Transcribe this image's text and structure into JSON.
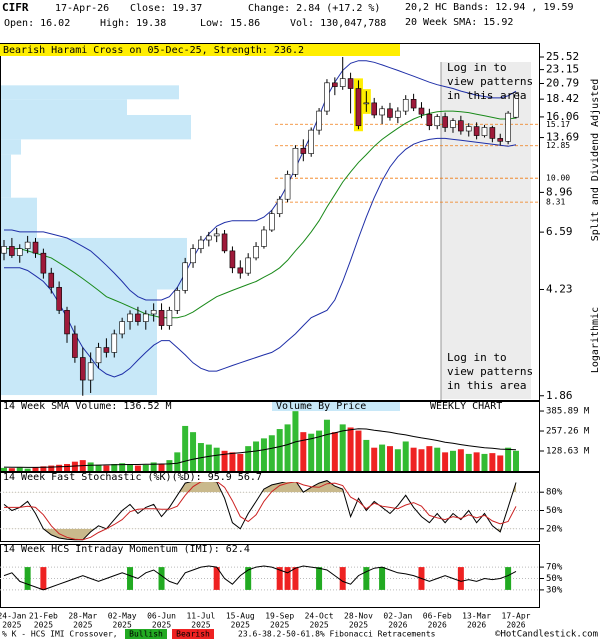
{
  "header": {
    "symbol": "CIFR",
    "date": "17-Apr-26",
    "close": "Close: 19.37",
    "change": "Change: 2.84 (+17.2 %)",
    "open": "Open: 16.02",
    "high": "High: 19.38",
    "low": "Low: 15.86",
    "volume": "Vol: 130,047,788"
  },
  "footer": {
    "crossover": "% K - HCS IMI Crossover,",
    "copyright": "©HotCandlestick.com"
  },
  "chart_data": [
    {
      "type": "candlestick",
      "title": "Bearish Harami Cross on 05-Dec-25, Strength: 236.2",
      "title_color": "#ffee00",
      "categories": [
        null,
        "24-Jan",
        null,
        null,
        null,
        "21-Feb",
        null,
        null,
        null,
        null,
        "28-Mar",
        null,
        null,
        null,
        null,
        "02-May",
        null,
        null,
        null,
        null,
        "06-Jun",
        null,
        null,
        null,
        null,
        "11-Jul",
        null,
        null,
        null,
        null,
        "15-Aug",
        null,
        null,
        null,
        null,
        "19-Sep",
        null,
        null,
        null,
        null,
        "24-Oct",
        null,
        null,
        null,
        null,
        "28-Nov",
        null,
        null,
        null,
        null,
        "02-Jan",
        null,
        null,
        null,
        null,
        "06-Feb",
        null,
        null,
        null,
        null,
        "13-Mar",
        null,
        null,
        null,
        null,
        "17-Apr"
      ],
      "category_years": [
        null,
        "2025",
        null,
        null,
        null,
        "2025",
        null,
        null,
        null,
        null,
        "2025",
        null,
        null,
        null,
        null,
        "2025",
        null,
        null,
        null,
        null,
        "2025",
        null,
        null,
        null,
        null,
        "2025",
        null,
        null,
        null,
        null,
        "2025",
        null,
        null,
        null,
        null,
        "2025",
        null,
        null,
        null,
        null,
        "2025",
        null,
        null,
        null,
        null,
        "2025",
        null,
        null,
        null,
        null,
        "2026",
        null,
        null,
        null,
        null,
        "2026",
        null,
        null,
        null,
        null,
        "2026",
        null,
        null,
        null,
        null,
        "2026"
      ],
      "open": [
        5.6,
        5.9,
        5.5,
        5.8,
        6.1,
        5.6,
        4.8,
        4.3,
        3.6,
        3.0,
        2.5,
        2.1,
        2.4,
        2.7,
        2.6,
        3.0,
        3.3,
        3.5,
        3.3,
        3.5,
        3.6,
        3.2,
        3.6,
        4.2,
        5.2,
        5.8,
        6.2,
        6.4,
        6.5,
        5.7,
        5.0,
        4.8,
        5.4,
        5.9,
        6.7,
        7.6,
        8.5,
        10.3,
        12.6,
        12.1,
        14.5,
        16.8,
        20.9,
        20.3,
        21.6,
        20.0,
        17.8,
        17.9,
        16.3,
        17.1,
        16.0,
        16.8,
        18.4,
        17.2,
        16.4,
        15.0,
        16.1,
        14.8,
        15.6,
        14.4,
        14.9,
        13.9,
        14.8,
        13.6,
        13.3,
        16.02
      ],
      "high": [
        6.2,
        6.3,
        6.0,
        6.4,
        6.3,
        5.8,
        5.0,
        4.5,
        3.7,
        3.2,
        2.7,
        2.6,
        2.8,
        2.9,
        3.1,
        3.4,
        3.6,
        3.7,
        3.6,
        3.8,
        3.8,
        3.7,
        4.3,
        5.4,
        6.0,
        6.4,
        6.6,
        6.8,
        6.7,
        5.9,
        5.3,
        5.6,
        6.1,
        6.9,
        7.8,
        8.7,
        10.6,
        12.9,
        13.5,
        14.8,
        17.2,
        21.5,
        21.8,
        25.52,
        22.6,
        21.3,
        19.6,
        18.6,
        17.5,
        17.9,
        17.3,
        19.0,
        19.2,
        18.0,
        17.1,
        16.4,
        16.6,
        15.9,
        16.2,
        15.3,
        15.4,
        15.1,
        15.0,
        14.1,
        16.8,
        19.38
      ],
      "low": [
        5.3,
        5.4,
        5.2,
        5.6,
        5.4,
        4.6,
        4.1,
        3.5,
        2.8,
        2.4,
        1.86,
        1.9,
        2.3,
        2.5,
        2.5,
        2.9,
        3.1,
        3.2,
        3.1,
        3.3,
        3.1,
        3.1,
        3.5,
        4.1,
        5.0,
        5.6,
        5.9,
        6.1,
        5.6,
        4.8,
        4.6,
        4.7,
        5.3,
        5.8,
        6.6,
        7.4,
        8.3,
        10.1,
        11.4,
        11.8,
        14.0,
        16.3,
        19.0,
        19.8,
        16.5,
        14.6,
        16.7,
        15.9,
        15.2,
        15.6,
        15.3,
        16.3,
        16.8,
        15.9,
        14.5,
        14.6,
        14.3,
        14.2,
        14.0,
        13.8,
        13.5,
        13.7,
        13.2,
        12.9,
        13.0,
        15.86
      ],
      "close": [
        5.9,
        5.5,
        5.8,
        6.1,
        5.6,
        4.8,
        4.3,
        3.6,
        3.0,
        2.5,
        2.1,
        2.4,
        2.7,
        2.6,
        3.0,
        3.3,
        3.5,
        3.3,
        3.5,
        3.6,
        3.2,
        3.6,
        4.2,
        5.2,
        5.8,
        6.2,
        6.4,
        6.5,
        5.7,
        5.0,
        4.8,
        5.4,
        5.9,
        6.7,
        7.6,
        8.5,
        10.3,
        12.6,
        12.1,
        14.5,
        16.8,
        20.9,
        20.3,
        21.6,
        20.0,
        15.0,
        17.9,
        16.3,
        17.1,
        16.0,
        16.8,
        18.4,
        17.2,
        16.4,
        15.0,
        16.1,
        14.8,
        15.6,
        14.4,
        14.9,
        13.9,
        14.8,
        13.6,
        13.3,
        16.53,
        19.37
      ],
      "up_color": "#ffffff",
      "down_color": "#9e1a3a",
      "harami_candles": [
        45,
        46
      ],
      "harami_color": "#ffee00",
      "series": [
        {
          "name": "20,2 HC Bands: 12.94 , 19.59",
          "color": "#1f2fa8",
          "upper": [
            6.7,
            6.7,
            6.6,
            6.6,
            6.6,
            6.6,
            6.5,
            6.4,
            6.3,
            6.1,
            5.9,
            5.7,
            5.4,
            5.1,
            4.8,
            4.5,
            4.2,
            4.0,
            3.9,
            3.9,
            3.9,
            4.0,
            4.3,
            4.8,
            5.4,
            6.0,
            6.5,
            6.9,
            7.1,
            7.2,
            7.2,
            7.2,
            7.2,
            7.4,
            7.8,
            8.5,
            9.5,
            10.8,
            12.3,
            14.0,
            16.2,
            18.8,
            21.0,
            23.0,
            24.3,
            24.8,
            24.8,
            24.5,
            24.0,
            23.5,
            23.0,
            22.5,
            22.0,
            21.5,
            21.0,
            20.6,
            20.3,
            20.0,
            19.6,
            19.3,
            19.0,
            18.8,
            18.6,
            18.6,
            18.9,
            19.59
          ],
          "lower": [
            5.0,
            5.0,
            5.0,
            4.9,
            4.7,
            4.5,
            4.2,
            3.8,
            3.4,
            3.0,
            2.7,
            2.5,
            2.3,
            2.2,
            2.15,
            2.2,
            2.3,
            2.45,
            2.6,
            2.75,
            2.85,
            2.85,
            2.7,
            2.55,
            2.4,
            2.3,
            2.25,
            2.25,
            2.3,
            2.35,
            2.4,
            2.45,
            2.5,
            2.55,
            2.6,
            2.7,
            2.85,
            3.0,
            3.2,
            3.4,
            3.5,
            3.6,
            3.9,
            4.5,
            5.3,
            6.3,
            7.4,
            8.6,
            9.8,
            10.9,
            11.8,
            12.5,
            13.0,
            13.3,
            13.5,
            13.6,
            13.6,
            13.5,
            13.4,
            13.3,
            13.2,
            13.1,
            13.0,
            12.9,
            12.8,
            12.94
          ]
        },
        {
          "name": "20 Week SMA: 15.92",
          "color": "#1a8a1a",
          "values": [
            5.8,
            5.8,
            5.8,
            5.7,
            5.6,
            5.5,
            5.4,
            5.2,
            5.0,
            4.8,
            4.6,
            4.4,
            4.2,
            4.0,
            3.9,
            3.8,
            3.7,
            3.6,
            3.5,
            3.45,
            3.4,
            3.4,
            3.4,
            3.45,
            3.55,
            3.7,
            3.85,
            4.0,
            4.1,
            4.2,
            4.3,
            4.4,
            4.5,
            4.65,
            4.8,
            5.0,
            5.3,
            5.7,
            6.1,
            6.6,
            7.2,
            8.0,
            8.8,
            9.7,
            10.5,
            11.3,
            12.0,
            12.8,
            13.5,
            14.1,
            14.7,
            15.3,
            15.8,
            16.2,
            16.5,
            16.7,
            16.8,
            16.8,
            16.7,
            16.6,
            16.4,
            16.2,
            16.0,
            15.8,
            15.8,
            15.92
          ]
        }
      ],
      "log_scale": true,
      "ylim": [
        1.8,
        28
      ],
      "yticks": [
        25.52,
        23.15,
        20.79,
        18.42,
        16.06,
        13.69,
        8.96,
        6.59,
        4.23,
        1.86
      ],
      "fibonacci": {
        "label": "23.6-38.2-50-61.8% Fibonacci Retracements",
        "color": "#f07a10",
        "levels": [
          15.17,
          12.85,
          {
            "value": 10,
            "label": "10.00"
          },
          8.31
        ]
      },
      "volume_by_price": {
        "name": "Volume By Price",
        "color": "#c8e8f8",
        "bins": [
          1.87,
          4.23,
          6.3,
          8.6,
          12,
          13.5,
          16.3,
          18.4,
          20.5
        ],
        "values": [
          78,
          93,
          18,
          5,
          10,
          95,
          63,
          89
        ],
        "xlim": [
          0,
          100
        ]
      },
      "login_notice": [
        "Log in to",
        "view patterns",
        "in this area"
      ],
      "side_labels": [
        "Split and Dividend Adjusted",
        "Logarithmic"
      ]
    },
    {
      "type": "bar",
      "title": "14 Week SMA Volume: 136.52 M",
      "label": "WEEKLY CHART",
      "values": [
        20,
        18,
        22,
        15,
        25,
        30,
        35,
        40,
        45,
        60,
        70,
        55,
        40,
        35,
        45,
        50,
        40,
        35,
        40,
        55,
        45,
        70,
        120,
        290,
        250,
        180,
        170,
        150,
        130,
        120,
        110,
        160,
        190,
        210,
        230,
        270,
        300,
        385,
        250,
        240,
        260,
        330,
        250,
        300,
        280,
        260,
        200,
        150,
        170,
        160,
        140,
        190,
        150,
        140,
        160,
        150,
        120,
        130,
        140,
        110,
        120,
        110,
        115,
        100,
        150,
        130.05
      ],
      "up_color": "#33bb33",
      "down_color": "#ee2222",
      "sma": {
        "color": "#000000",
        "values": [
          25,
          24,
          24,
          23,
          23,
          24,
          25,
          27,
          29,
          32,
          35,
          37,
          38,
          39,
          40,
          41,
          42,
          42,
          43,
          44,
          45,
          46,
          50,
          64,
          76,
          85,
          94,
          102,
          108,
          113,
          118,
          123,
          129,
          137,
          146,
          157,
          170,
          187,
          198,
          208,
          220,
          235,
          245,
          258,
          266,
          272,
          270,
          262,
          256,
          249,
          240,
          232,
          222,
          213,
          205,
          196,
          185,
          178,
          170,
          162,
          156,
          150,
          146,
          141,
          139,
          136.52
        ]
      },
      "ylim": [
        0,
        399
      ],
      "yticks": [
        {
          "value": 385.89,
          "label": "385.89 M"
        },
        {
          "value": 257.26,
          "label": "257.26 M"
        },
        {
          "value": 128.63,
          "label": "128.63 M"
        }
      ]
    },
    {
      "type": "line",
      "title": "14 Week Fast Stochastic (%K)(%D): 95.9 56.7",
      "shade_color": "#c9b98c",
      "series": [
        {
          "color": "#000000",
          "values": [
            60,
            50,
            55,
            65,
            45,
            20,
            10,
            5,
            3,
            2,
            2,
            15,
            25,
            20,
            35,
            50,
            60,
            45,
            55,
            60,
            40,
            55,
            75,
            95,
            98,
            99,
            98,
            97,
            70,
            30,
            20,
            45,
            65,
            85,
            92,
            95,
            98,
            99,
            80,
            88,
            95,
            99,
            90,
            85,
            40,
            70,
            50,
            65,
            55,
            45,
            58,
            75,
            55,
            40,
            30,
            45,
            30,
            45,
            35,
            50,
            30,
            45,
            25,
            15,
            55,
            95.9
          ]
        },
        {
          "color": "#cc2222",
          "values": [
            55,
            55,
            55,
            57,
            55,
            43,
            25,
            12,
            6,
            3,
            2,
            6,
            14,
            20,
            27,
            35,
            48,
            52,
            53,
            53,
            52,
            52,
            57,
            75,
            89,
            97,
            98,
            98,
            88,
            66,
            40,
            32,
            43,
            65,
            81,
            91,
            95,
            97,
            92,
            89,
            88,
            94,
            95,
            91,
            72,
            65,
            53,
            62,
            57,
            55,
            53,
            59,
            63,
            57,
            42,
            38,
            35,
            40,
            37,
            43,
            38,
            42,
            33,
            28,
            32,
            56.7
          ]
        }
      ],
      "ylim": [
        0,
        100
      ],
      "yticks": [
        {
          "value": 80,
          "label": "80%"
        },
        {
          "value": 50,
          "label": "50%"
        },
        {
          "value": 20,
          "label": "20%"
        }
      ]
    },
    {
      "type": "line",
      "title": "14 Week HCS Intraday Momentum (IMI): 62.4",
      "color": "#000000",
      "values": [
        55,
        60,
        45,
        40,
        35,
        30,
        35,
        40,
        45,
        50,
        55,
        50,
        45,
        50,
        55,
        60,
        55,
        50,
        60,
        65,
        55,
        45,
        40,
        60,
        65,
        70,
        72,
        70,
        50,
        40,
        55,
        65,
        70,
        72,
        70,
        65,
        60,
        68,
        72,
        70,
        68,
        65,
        55,
        45,
        40,
        55,
        62,
        68,
        70,
        65,
        60,
        58,
        55,
        50,
        45,
        50,
        55,
        50,
        45,
        48,
        45,
        50,
        48,
        50,
        55,
        62.4
      ],
      "signals": [
        {
          "name": "Bullish",
          "color": "#22aa22",
          "weeks": [
            3,
            16,
            20,
            31,
            40,
            46,
            48,
            64
          ]
        },
        {
          "name": "Bearish",
          "color": "#ee2222",
          "weeks": [
            5,
            27,
            35,
            36,
            37,
            43,
            53,
            58
          ]
        }
      ],
      "ylim": [
        0,
        100
      ],
      "yticks": [
        {
          "value": 70,
          "label": "70%"
        },
        {
          "value": 50,
          "label": "50%"
        },
        {
          "value": 30,
          "label": "30%"
        }
      ]
    }
  ]
}
